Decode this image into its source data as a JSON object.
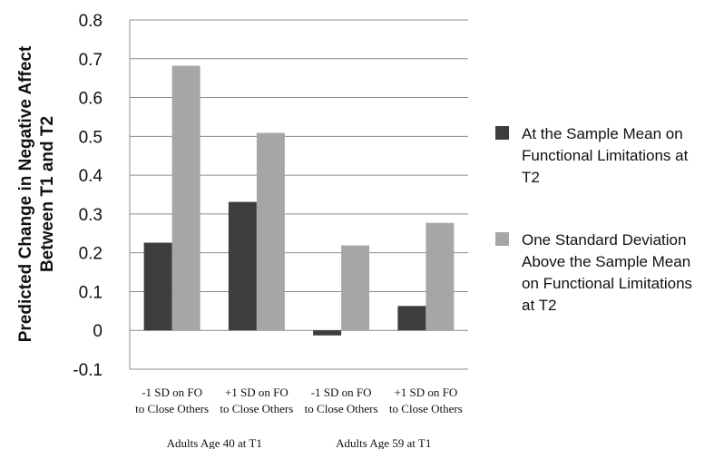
{
  "chart_data": {
    "type": "bar",
    "ylabel": "Predicted Change in Negative Affect Between T1 and T2",
    "ylabel_lines": [
      "Predicted Change in Negative Affect",
      "Between T1 and T2"
    ],
    "ylim": [
      -0.1,
      0.8
    ],
    "yticks": [
      -0.1,
      0,
      0.1,
      0.2,
      0.3,
      0.4,
      0.5,
      0.6,
      0.7,
      0.8
    ],
    "ytick_labels": [
      "-0.1",
      "0",
      "0.1",
      "0.2",
      "0.3",
      "0.4",
      "0.5",
      "0.6",
      "0.7",
      "0.8"
    ],
    "grid": true,
    "legend_position": "right",
    "categories": [
      [
        "-1 SD on FO",
        "to Close Others"
      ],
      [
        "+1 SD on FO",
        "to Close Others"
      ],
      [
        "-1 SD on FO",
        "to Close Others"
      ],
      [
        "+1 SD on FO",
        "to Close Others"
      ]
    ],
    "groups": [
      {
        "label": "Adults Age 40 at T1",
        "categories": [
          0,
          1
        ]
      },
      {
        "label": "Adults Age 59 at T1",
        "categories": [
          2,
          3
        ]
      }
    ],
    "series": [
      {
        "name": "At the Sample Mean on Functional Limitations at T2",
        "name_lines": [
          "At the Sample Mean on",
          "Functional Limitations at",
          "T2"
        ],
        "color": "#3d3d3d",
        "values": [
          0.226,
          0.331,
          -0.013,
          0.063
        ]
      },
      {
        "name": "One Standard Deviation Above the Sample Mean on Functional Limitations at T2",
        "name_lines": [
          "One Standard Deviation",
          "Above the Sample Mean",
          "on Functional Limitations",
          "at T2"
        ],
        "color": "#a6a6a6",
        "values": [
          0.682,
          0.509,
          0.219,
          0.277
        ]
      }
    ]
  }
}
